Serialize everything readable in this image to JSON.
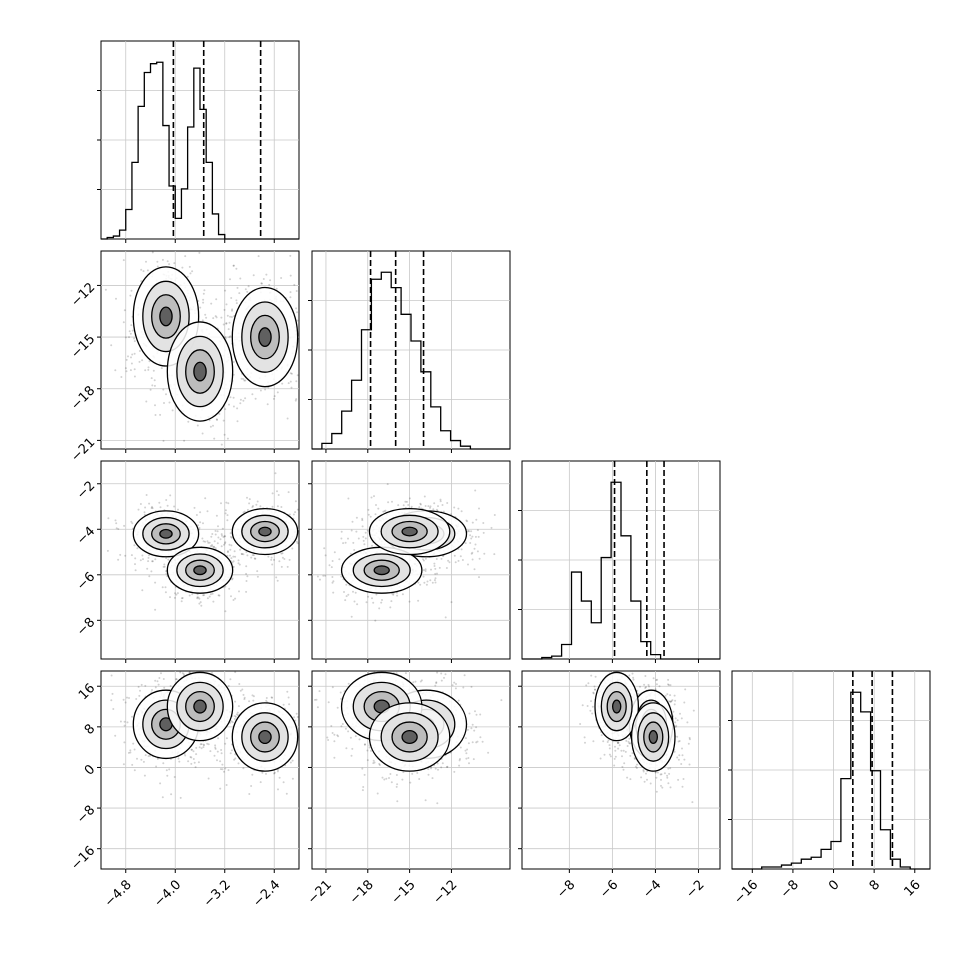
{
  "chart_data": {
    "type": "corner",
    "parameters": [
      {
        "xlim": [
          -5.2,
          -2.0
        ],
        "ticks": [
          -4.8,
          -4.0,
          -3.2,
          -2.4
        ],
        "tick_labels": [
          "−4.8",
          "−4.0",
          "−3.2",
          "−2.4"
        ],
        "quantiles": [
          -4.03,
          -3.54,
          -2.62
        ],
        "histogram": {
          "bin_start": -5.2,
          "bin_width": 0.1,
          "counts": [
            0,
            1,
            2,
            6,
            20,
            52,
            90,
            113,
            119,
            120,
            77,
            36,
            14,
            34,
            76,
            116,
            88,
            52,
            17,
            3,
            0,
            0,
            0,
            0,
            0,
            0,
            0,
            0,
            0,
            0,
            0,
            0
          ]
        }
      },
      {
        "xlim": [
          -22,
          -7.8
        ],
        "ticks": [
          -21,
          -18,
          -15,
          -12
        ],
        "tick_labels": [
          "−21",
          "−18",
          "−15",
          "−12"
        ],
        "quantiles": [
          -17.8,
          -16.0,
          -14.0
        ],
        "histogram": {
          "bin_start": -22,
          "bin_width": 0.71,
          "counts": [
            0,
            4,
            11,
            27,
            49,
            85,
            121,
            126,
            115,
            96,
            77,
            55,
            30,
            13,
            6,
            2,
            0,
            0,
            0,
            0
          ]
        }
      },
      {
        "xlim": [
          -10.2,
          -1.0
        ],
        "ticks": [
          -8,
          -6,
          -4,
          -2
        ],
        "tick_labels": [
          "−8",
          "−6",
          "−4",
          "−2"
        ],
        "quantiles": [
          -5.9,
          -4.4,
          -3.6
        ],
        "histogram": {
          "bin_start": -10.2,
          "bin_width": 0.46,
          "counts": [
            0,
            0,
            1,
            2,
            10,
            60,
            40,
            25,
            70,
            122,
            85,
            40,
            12,
            3,
            0,
            0,
            0,
            0,
            0,
            0
          ]
        }
      },
      {
        "xlim": [
          -20,
          19
        ],
        "ticks": [
          -16,
          -8,
          0,
          8,
          16
        ],
        "tick_labels": [
          "−16",
          "−8",
          "0",
          "8",
          "16"
        ],
        "quantiles": [
          3.8,
          7.6,
          11.6
        ],
        "histogram": {
          "bin_start": -20,
          "bin_width": 1.95,
          "counts": [
            0,
            0,
            0,
            1,
            1,
            2,
            3,
            5,
            6,
            10,
            14,
            46,
            90,
            80,
            50,
            20,
            5,
            1,
            0,
            0
          ]
        }
      }
    ],
    "y_axes": [
      null,
      {
        "ticks": [
          -12,
          -15,
          -18,
          -21
        ],
        "tick_labels": [
          "−12",
          "−15",
          "−18",
          "−21"
        ]
      },
      {
        "ticks": [
          -2,
          -4,
          -6,
          -8
        ],
        "tick_labels": [
          "−2",
          "−4",
          "−6",
          "−8"
        ]
      },
      {
        "ticks": [
          16,
          8,
          0,
          -8,
          -16
        ],
        "tick_labels": [
          "16",
          "8",
          "0",
          "−8",
          "−16"
        ]
      }
    ],
    "modes": [
      {
        "p0": -4.15,
        "p1": -13.8,
        "p2": -4.2,
        "p3": 8.5
      },
      {
        "p0": -3.6,
        "p1": -17.0,
        "p2": -5.8,
        "p3": 12.0
      },
      {
        "p0": -2.55,
        "p1": -15.0,
        "p2": -4.1,
        "p3": 6.0
      }
    ],
    "grid": true
  }
}
